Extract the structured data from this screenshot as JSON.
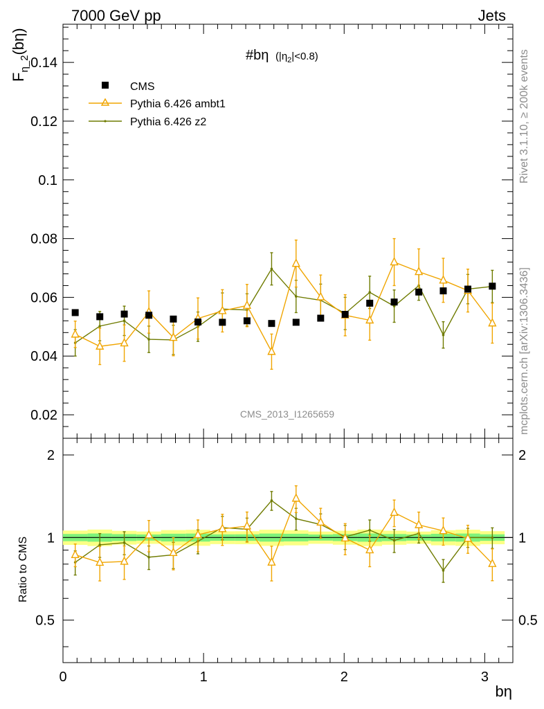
{
  "chart_data": {
    "type": "line",
    "header_left": "7000 GeV pp",
    "header_right": "Jets",
    "title": "#bη",
    "title_sub": "(|η",
    "title_sub_index": "2",
    "title_sub_end": "|<0.8)",
    "ylabel_main": "F",
    "ylabel_main_sub": "η_2",
    "ylabel_main_end": "(bη)",
    "ylabel_ratio": "Ratio to CMS",
    "xlabel": "bη",
    "side_label_top": "Rivet 3.1.10, ≥ 200k events",
    "side_label_bottom": "mcplots.cern.ch [arXiv:1306.3436]",
    "watermark": "CMS_2013_I1265659",
    "xlim": [
      0,
      3.2
    ],
    "ylim_main": [
      0.012,
      0.153
    ],
    "ylim_ratio": [
      0.35,
      2.3
    ],
    "x_ticks": [
      "0",
      "1",
      "2",
      "3"
    ],
    "y_ticks_main": [
      "0.02",
      "0.04",
      "0.06",
      "0.08",
      "0.1",
      "0.12",
      "0.14"
    ],
    "y_ticks_ratio": [
      "0.5",
      "1",
      "2"
    ],
    "x": [
      0.087,
      0.262,
      0.436,
      0.611,
      0.785,
      0.96,
      1.134,
      1.309,
      1.484,
      1.658,
      1.833,
      2.007,
      2.182,
      2.356,
      2.531,
      2.705,
      2.88,
      3.054
    ],
    "series": [
      {
        "name": "CMS",
        "color": "#000000",
        "marker": "square",
        "values": [
          0.0548,
          0.0534,
          0.0543,
          0.0539,
          0.0526,
          0.0516,
          0.0515,
          0.052,
          0.0511,
          0.0515,
          0.0529,
          0.0542,
          0.058,
          0.0584,
          0.0618,
          0.0622,
          0.0628,
          0.0638
        ],
        "errors": [
          0.0004,
          0.0004,
          0.0004,
          0.0004,
          0.0004,
          0.0004,
          0.0004,
          0.0004,
          0.0004,
          0.0004,
          0.0004,
          0.0004,
          0.0005,
          0.0005,
          0.0005,
          0.0005,
          0.0005,
          0.0005
        ]
      },
      {
        "name": "Pythia 6.426 ambt1",
        "color": "#f0a500",
        "marker": "triangle",
        "values": [
          0.0474,
          0.0433,
          0.0444,
          0.055,
          0.0463,
          0.0528,
          0.0554,
          0.0572,
          0.0415,
          0.0715,
          0.0601,
          0.0539,
          0.0522,
          0.072,
          0.0687,
          0.0658,
          0.0623,
          0.0512
        ],
        "errors": [
          0.0045,
          0.0062,
          0.0062,
          0.0072,
          0.0062,
          0.007,
          0.0072,
          0.0072,
          0.006,
          0.008,
          0.0075,
          0.007,
          0.0068,
          0.008,
          0.0078,
          0.0075,
          0.0073,
          0.0068
        ]
      },
      {
        "name": "Pythia 6.426 z2",
        "color": "#6f7b00",
        "marker": "dot",
        "values": [
          0.0445,
          0.0502,
          0.052,
          0.0457,
          0.0455,
          0.05,
          0.056,
          0.0557,
          0.0697,
          0.0603,
          0.059,
          0.0545,
          0.0617,
          0.057,
          0.064,
          0.0472,
          0.0628,
          0.0637
        ],
        "errors": [
          0.0045,
          0.005,
          0.005,
          0.0045,
          0.005,
          0.005,
          0.0055,
          0.0055,
          0.0055,
          0.0055,
          0.0055,
          0.0055,
          0.0055,
          0.0055,
          0.005,
          0.0045,
          0.005,
          0.0055
        ]
      }
    ],
    "ratio_band": {
      "inner_color": "#7ef27a",
      "outer_color": "#fbff85",
      "inner_half_width": 0.03,
      "outer_half_width": 0.06
    }
  }
}
